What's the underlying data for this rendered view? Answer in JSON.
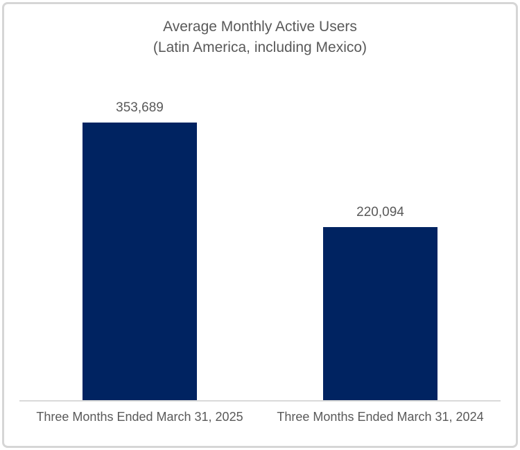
{
  "chart_data": {
    "type": "bar",
    "title": "Average Monthly Active Users",
    "subtitle": "(Latin America, including Mexico)",
    "categories": [
      "Three Months Ended March 31, 2025",
      "Three Months Ended March 31, 2024"
    ],
    "values": [
      353689,
      220094
    ],
    "data_labels": [
      "353,689",
      "220,094"
    ],
    "xlabel": "",
    "ylabel": "",
    "ylim": [
      0,
      353689
    ],
    "grid": false,
    "legend": "none",
    "bar_color": "#002361"
  },
  "colors": {
    "bar": "#002361",
    "text": "#595959",
    "axis_line": "#d9d9d9",
    "frame_border": "#d6d6d6",
    "background": "#ffffff"
  }
}
